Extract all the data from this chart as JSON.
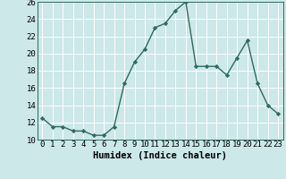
{
  "xlabel": "Humidex (Indice chaleur)",
  "x": [
    0,
    1,
    2,
    3,
    4,
    5,
    6,
    7,
    8,
    9,
    10,
    11,
    12,
    13,
    14,
    15,
    16,
    17,
    18,
    19,
    20,
    21,
    22,
    23
  ],
  "y": [
    12.5,
    11.5,
    11.5,
    11.0,
    11.0,
    10.5,
    10.5,
    11.5,
    16.5,
    19.0,
    20.5,
    23.0,
    23.5,
    25.0,
    26.0,
    18.5,
    18.5,
    18.5,
    17.5,
    19.5,
    21.5,
    16.5,
    14.0,
    13.0
  ],
  "line_color": "#2e6b5e",
  "bg_color": "#cce8e8",
  "grid_color": "#ffffff",
  "ylim": [
    10,
    26
  ],
  "yticks": [
    10,
    12,
    14,
    16,
    18,
    20,
    22,
    24,
    26
  ],
  "xlim": [
    -0.5,
    23.5
  ],
  "marker": "D",
  "markersize": 2.2,
  "linewidth": 1.0,
  "xlabel_fontsize": 7.5,
  "tick_fontsize": 6.5
}
